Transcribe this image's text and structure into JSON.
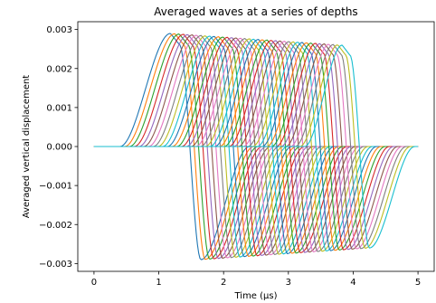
{
  "chart_data": {
    "type": "line",
    "title": "Averaged waves at a series of depths",
    "xlabel": "Time (μs)",
    "ylabel": "Averaged vertical displacement",
    "xlim": [
      -0.25,
      5.25
    ],
    "ylim": [
      -0.0032,
      0.0032
    ],
    "xticks": [
      0,
      1,
      2,
      3,
      4,
      5
    ],
    "xtick_labels": [
      "0",
      "1",
      "2",
      "3",
      "4",
      "5"
    ],
    "yticks": [
      -0.003,
      -0.002,
      -0.001,
      0.0,
      0.001,
      0.002,
      0.003
    ],
    "ytick_labels": [
      "−0.003",
      "−0.002",
      "−0.001",
      "0.000",
      "0.001",
      "0.002",
      "0.003"
    ],
    "grid": false,
    "legend": "none",
    "series_count": 40,
    "x_range": [
      0,
      5
    ],
    "first_series": {
      "rise_start": 0.4,
      "positive_peak": [
        1.18,
        0.0029
      ],
      "zero_cross": 1.42,
      "negative_peak": [
        1.65,
        -0.0029
      ],
      "return_end": 2.4
    },
    "last_series": {
      "rise_start": 3.25,
      "positive_peak": [
        3.83,
        0.0026
      ],
      "zero_cross": 4.05,
      "negative_peak": [
        4.25,
        -0.0026
      ],
      "return_end": 4.95
    },
    "colors": [
      "#1f77b4",
      "#ff7f0e",
      "#2ca02c",
      "#d62728",
      "#9467bd",
      "#8c564b",
      "#e377c2",
      "#7f7f7f",
      "#bcbd22",
      "#17becf"
    ]
  }
}
